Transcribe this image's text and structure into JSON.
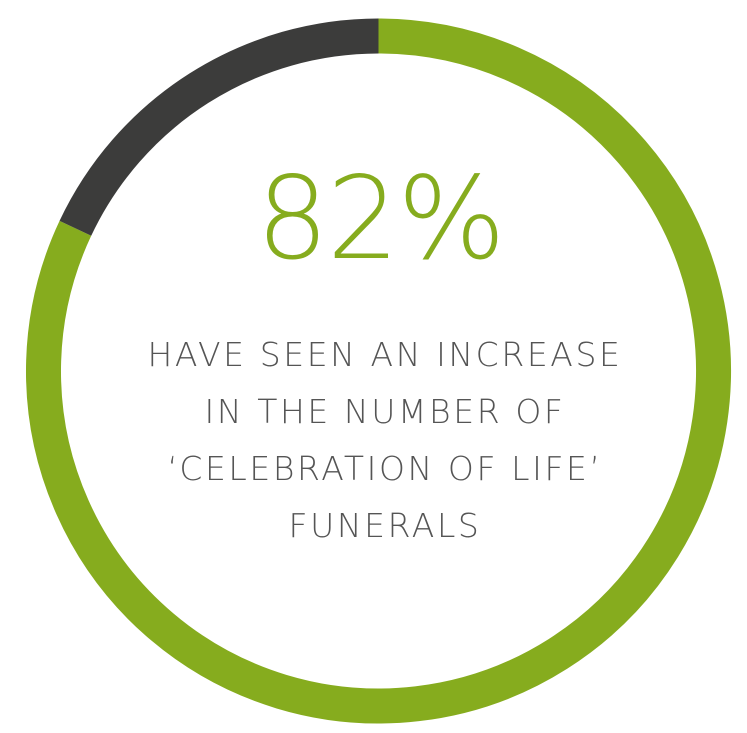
{
  "chart_data": {
    "type": "pie",
    "style": "donut",
    "value_label": "82%",
    "slices": [
      {
        "value": 82,
        "color": "#86ac1e"
      },
      {
        "value": 18,
        "color": "#3c3c3b"
      }
    ],
    "caption_lines": [
      "HAVE SEEN AN INCREASE",
      "IN THE NUMBER OF",
      "‘CELEBRATION OF LIFE’",
      "FUNERALS"
    ]
  },
  "colors": {
    "accent": "#86ac1e",
    "remainder": "#3c3c3b",
    "caption_text": "#555555"
  }
}
